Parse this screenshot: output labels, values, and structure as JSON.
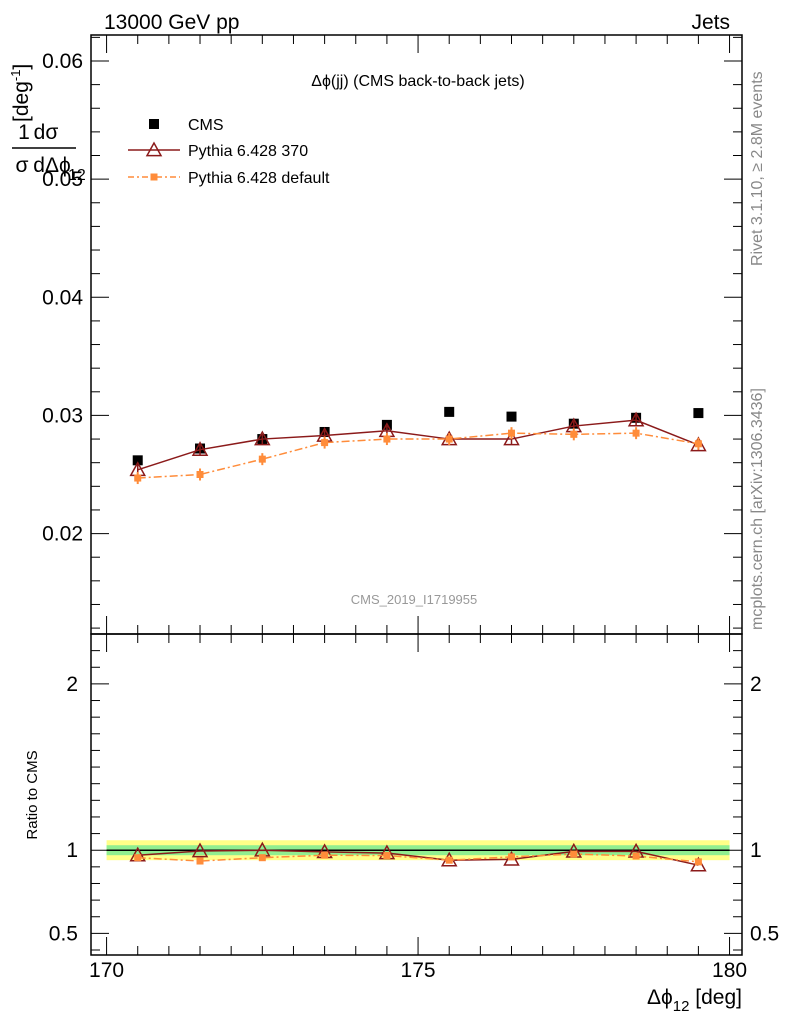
{
  "header": {
    "left": "13000 GeV pp",
    "right": "Jets"
  },
  "side_text": {
    "top": "Rivet 3.1.10, ≥ 2.8M events",
    "bottom": "mcplots.cern.ch [arXiv:1306.3436]"
  },
  "watermark": "CMS_2019_I1719955",
  "colors": {
    "cms": "#000000",
    "p370": "#8b1a1a",
    "pdef": "#ff8c3a",
    "band_inner": "#90ee90",
    "band_outer": "#ffff88"
  },
  "chart_data": {
    "type": "line",
    "title": "Δϕ(jj) (CMS back-to-back jets)",
    "xlabel": {
      "main": "Δϕ",
      "sub": "12",
      "unit": " [deg]"
    },
    "ylabel": {
      "one": "1",
      "dsigma": "dσ",
      "sigma": "σ",
      "dd": "dΔϕ",
      "sub": "12",
      "unit": "[deg",
      "sup": "-1",
      "close": "]"
    },
    "xlim": [
      169.75,
      180.2
    ],
    "ylim": [
      0.0115,
      0.0622
    ],
    "x_ticks": [
      170,
      175,
      180
    ],
    "x_tick_labels": [
      "170",
      "175",
      "180"
    ],
    "y_ticks": [
      0.02,
      0.03,
      0.04,
      0.05,
      0.06
    ],
    "y_tick_labels": [
      "0.02",
      "0.03",
      "0.04",
      "0.05",
      "0.06"
    ],
    "x": [
      170.5,
      171.5,
      172.5,
      173.5,
      174.5,
      175.5,
      176.5,
      177.5,
      178.5,
      179.5
    ],
    "series": [
      {
        "name": "CMS",
        "key": "cms",
        "values": [
          0.0262,
          0.0272,
          0.028,
          0.0286,
          0.0292,
          0.0303,
          0.0299,
          0.0293,
          0.0298,
          0.0302
        ]
      },
      {
        "name": "Pythia 6.428 370",
        "key": "p370",
        "values": [
          0.0254,
          0.0271,
          0.028,
          0.0283,
          0.0287,
          0.028,
          0.028,
          0.0291,
          0.0296,
          0.0275
        ]
      },
      {
        "name": "Pythia 6.428 default",
        "key": "pdef",
        "values": [
          0.0247,
          0.025,
          0.0263,
          0.0277,
          0.028,
          0.028,
          0.0285,
          0.0284,
          0.0285,
          0.0276
        ]
      }
    ],
    "ratio": {
      "ylabel": "Ratio to CMS",
      "ylim": [
        0.37,
        2.3
      ],
      "y_ticks": [
        0.5,
        1,
        2
      ],
      "y_tick_labels": [
        "0.5",
        "1",
        "2"
      ],
      "series": [
        {
          "key": "p370",
          "values": [
            0.97,
            0.995,
            1.0,
            0.99,
            0.983,
            0.94,
            0.945,
            0.993,
            0.993,
            0.91
          ]
        },
        {
          "key": "pdef",
          "values": [
            0.955,
            0.935,
            0.955,
            0.97,
            0.968,
            0.94,
            0.96,
            0.977,
            0.965,
            0.93
          ]
        }
      ],
      "band_inner": 0.03,
      "band_outer": 0.06
    }
  }
}
